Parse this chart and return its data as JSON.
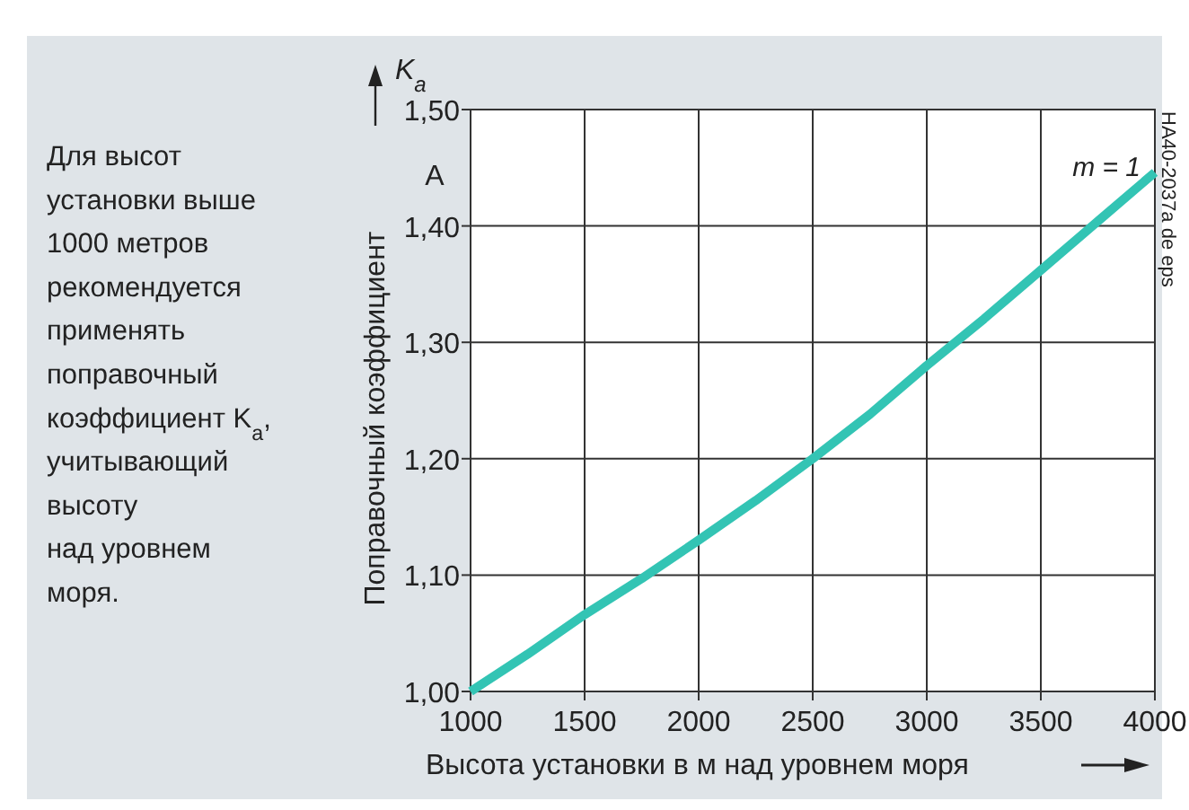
{
  "chart_data": {
    "type": "line",
    "xlabel": "Высота установки в м над уровнем моря",
    "ylabel": "Поправочный коэффициент",
    "x": [
      1000,
      1250,
      1500,
      1750,
      2000,
      2250,
      2500,
      2750,
      3000,
      3250,
      3500,
      3750,
      4000
    ],
    "series": [
      {
        "color": "#33c4b4",
        "values": [
          1.0,
          1.032,
          1.066,
          1.097,
          1.13,
          1.164,
          1.2,
          1.238,
          1.28,
          1.32,
          1.362,
          1.404,
          1.446
        ]
      }
    ],
    "xlim": [
      1000,
      4000
    ],
    "xticks": [
      1000,
      1500,
      2000,
      2500,
      3000,
      3500,
      4000
    ],
    "ylim": [
      1.0,
      1.5
    ],
    "yticks": [
      {
        "value": 1.0,
        "label": "1,00"
      },
      {
        "value": 1.1,
        "label": "1,10"
      },
      {
        "value": 1.2,
        "label": "1,20"
      },
      {
        "value": 1.3,
        "label": "1,30"
      },
      {
        "value": 1.4,
        "label": "1,40"
      },
      {
        "value": 1.5,
        "label": "1,50"
      }
    ],
    "grid": true,
    "marker": "none",
    "line_style": "solid",
    "annotations": [
      "Для высот\nустановки выше\n1000 метров\nрекомендуется\nприменять\nпоправочный\nкоэффициент K$_{a}$,\nучитывающий\nвысоту\nнад уровнем\nморя.",
      "K$_{a}$",
      "A",
      "m = 1",
      "HA40-2037a de eps"
    ]
  }
}
